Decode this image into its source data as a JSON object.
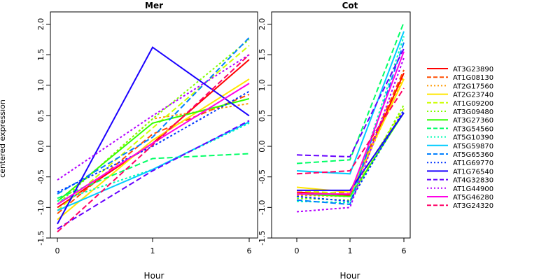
{
  "figure": {
    "ylabel": "centered expression"
  },
  "chart_data": [
    {
      "type": "line",
      "title": "Mer",
      "xlabel": "Hour",
      "ylabel": "centered expression",
      "x": [
        "0",
        "1",
        "6"
      ],
      "ylim": [
        -1.5,
        2.2
      ],
      "yticks": [
        -1.5,
        -1.0,
        -0.5,
        0.0,
        0.5,
        1.0,
        1.5,
        2.0
      ],
      "grid": false,
      "series": [
        {
          "name": "AT3G23890",
          "color": "#FF0000",
          "dash": "solid",
          "values": [
            -1.0,
            0.05,
            1.42
          ]
        },
        {
          "name": "AT1G08130",
          "color": "#FF4D00",
          "dash": "dashed",
          "values": [
            -1.1,
            0.2,
            0.85
          ]
        },
        {
          "name": "AT2G17560",
          "color": "#FF9900",
          "dash": "dotted",
          "values": [
            -0.95,
            0.45,
            0.7
          ]
        },
        {
          "name": "AT2G23740",
          "color": "#FFE600",
          "dash": "solid",
          "values": [
            -1.2,
            0.1,
            1.1
          ]
        },
        {
          "name": "AT1G09200",
          "color": "#CCFF00",
          "dash": "dashed",
          "values": [
            -1.05,
            0.3,
            1.65
          ]
        },
        {
          "name": "AT3G09480",
          "color": "#80FF00",
          "dash": "dotted",
          "values": [
            -0.95,
            0.45,
            1.75
          ]
        },
        {
          "name": "AT3G27360",
          "color": "#33FF00",
          "dash": "solid",
          "values": [
            -0.9,
            0.38,
            0.78
          ]
        },
        {
          "name": "AT3G54560",
          "color": "#00FF66",
          "dash": "dashed",
          "values": [
            -0.85,
            -0.2,
            -0.12
          ]
        },
        {
          "name": "AT5G10390",
          "color": "#00FFB3",
          "dash": "dotted",
          "values": [
            -0.9,
            -0.38,
            0.38
          ]
        },
        {
          "name": "AT5G59870",
          "color": "#00CCFF",
          "dash": "solid",
          "values": [
            -1.05,
            -0.38,
            0.4
          ]
        },
        {
          "name": "AT5G65360",
          "color": "#0080FF",
          "dash": "dashed",
          "values": [
            -0.78,
            0.15,
            1.78
          ]
        },
        {
          "name": "AT1G69770",
          "color": "#0033FF",
          "dash": "dotted",
          "values": [
            -0.75,
            0.0,
            0.9
          ]
        },
        {
          "name": "AT1G76540",
          "color": "#1A00FF",
          "dash": "solid",
          "values": [
            -1.27,
            1.62,
            0.5
          ]
        },
        {
          "name": "AT4G32830",
          "color": "#6600FF",
          "dash": "dashed",
          "values": [
            -1.35,
            -0.4,
            0.42
          ]
        },
        {
          "name": "AT1G44900",
          "color": "#B300FF",
          "dash": "dotted",
          "values": [
            -0.55,
            0.5,
            1.5
          ]
        },
        {
          "name": "AT5G46280",
          "color": "#FF00E6",
          "dash": "solid",
          "values": [
            -0.95,
            0.05,
            1.03
          ]
        },
        {
          "name": "AT3G24320",
          "color": "#FF0066",
          "dash": "dashed",
          "values": [
            -1.4,
            0.02,
            1.5
          ]
        }
      ]
    },
    {
      "type": "line",
      "title": "Cot",
      "xlabel": "Hour",
      "x": [
        "0",
        "1",
        "6"
      ],
      "ylim": [
        -1.5,
        2.2
      ],
      "yticks": [
        -1.5,
        -1.0,
        -0.5,
        0.0,
        0.5,
        1.0,
        1.5,
        2.0
      ],
      "grid": false,
      "series": [
        {
          "name": "AT3G23890",
          "color": "#FF0000",
          "dash": "solid",
          "values": [
            -0.75,
            -0.8,
            1.2
          ]
        },
        {
          "name": "AT1G08130",
          "color": "#FF4D00",
          "dash": "dashed",
          "values": [
            -0.78,
            -0.75,
            1.25
          ]
        },
        {
          "name": "AT2G17560",
          "color": "#FF9900",
          "dash": "dotted",
          "values": [
            -0.8,
            -0.82,
            1.15
          ]
        },
        {
          "name": "AT2G23740",
          "color": "#FFE600",
          "dash": "solid",
          "values": [
            -0.67,
            -0.75,
            1.1
          ]
        },
        {
          "name": "AT1G09200",
          "color": "#CCFF00",
          "dash": "dashed",
          "values": [
            -0.72,
            -0.78,
            0.62
          ]
        },
        {
          "name": "AT3G09480",
          "color": "#80FF00",
          "dash": "dotted",
          "values": [
            -0.85,
            -0.88,
            0.68
          ]
        },
        {
          "name": "AT3G27360",
          "color": "#33FF00",
          "dash": "solid",
          "values": [
            -0.78,
            -0.82,
            0.55
          ]
        },
        {
          "name": "AT3G54560",
          "color": "#00FF66",
          "dash": "dashed",
          "values": [
            -0.28,
            -0.22,
            2.03
          ]
        },
        {
          "name": "AT5G10390",
          "color": "#00FFB3",
          "dash": "dotted",
          "values": [
            -0.9,
            -0.92,
            1.8
          ]
        },
        {
          "name": "AT5G59870",
          "color": "#00CCFF",
          "dash": "solid",
          "values": [
            -0.4,
            -0.45,
            1.88
          ]
        },
        {
          "name": "AT5G65360",
          "color": "#0080FF",
          "dash": "dashed",
          "values": [
            -0.88,
            -0.95,
            1.7
          ]
        },
        {
          "name": "AT1G69770",
          "color": "#0033FF",
          "dash": "dotted",
          "values": [
            -0.82,
            -0.9,
            0.6
          ]
        },
        {
          "name": "AT1G76540",
          "color": "#1A00FF",
          "dash": "solid",
          "values": [
            -0.72,
            -0.72,
            0.55
          ]
        },
        {
          "name": "AT4G32830",
          "color": "#6600FF",
          "dash": "dashed",
          "values": [
            -0.14,
            -0.17,
            1.6
          ]
        },
        {
          "name": "AT1G44900",
          "color": "#B300FF",
          "dash": "dotted",
          "values": [
            -1.07,
            -1.0,
            1.45
          ]
        },
        {
          "name": "AT5G46280",
          "color": "#FF00E6",
          "dash": "solid",
          "values": [
            -0.78,
            -0.78,
            1.55
          ]
        },
        {
          "name": "AT3G24320",
          "color": "#FF0066",
          "dash": "dashed",
          "values": [
            -0.45,
            -0.4,
            0.95
          ]
        }
      ]
    }
  ]
}
